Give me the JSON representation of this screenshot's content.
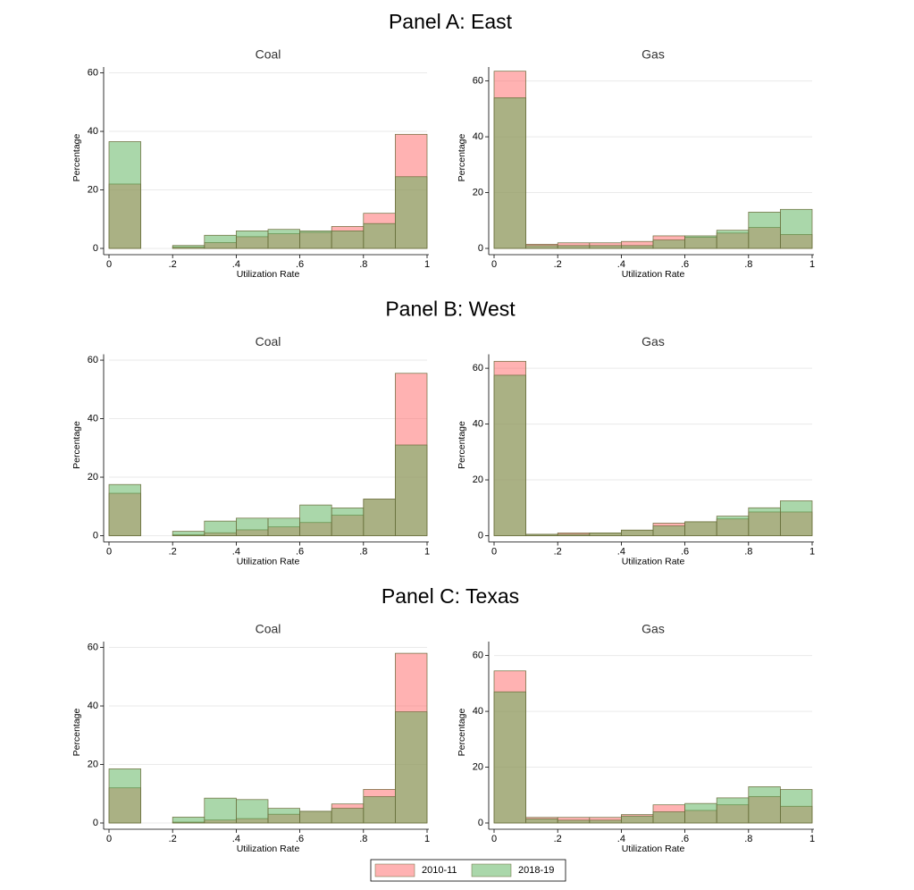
{
  "panel_titles": [
    "Panel A: East",
    "Panel B: West",
    "Panel C: Texas"
  ],
  "legend": [
    {
      "name": "2010-11",
      "color": "#ff6666"
    },
    {
      "name": "2018-19",
      "color": "#55b055"
    }
  ],
  "chart_data": [
    {
      "type": "histogram",
      "title": "Coal",
      "xlabel": "Utilization Rate",
      "ylabel": "Percentage",
      "bins": [
        0,
        0.1,
        0.2,
        0.3,
        0.4,
        0.5,
        0.6,
        0.7,
        0.8,
        0.9,
        1
      ],
      "series": [
        {
          "values": [
            22,
            0,
            0.5,
            2,
            4,
            5,
            5.5,
            7.5,
            12,
            39
          ]
        },
        {
          "values": [
            36.5,
            0,
            1,
            4.5,
            6,
            6.5,
            6,
            6,
            8.5,
            24.5
          ]
        }
      ],
      "xlim": [
        0,
        1
      ],
      "xticks": [
        0,
        {
          "value": 0.2,
          "label": ".2"
        },
        {
          "value": 0.4,
          "label": ".4"
        },
        {
          "value": 0.6,
          "label": ".6"
        },
        {
          "value": 0.8,
          "label": ".8"
        },
        1
      ],
      "ylim": [
        0,
        62
      ],
      "yticks": [
        0,
        20,
        40,
        60
      ],
      "grid": true
    },
    {
      "type": "histogram",
      "title": "Gas",
      "xlabel": "Utilization Rate",
      "ylabel": "Percentage",
      "bins": [
        0,
        0.1,
        0.2,
        0.3,
        0.4,
        0.5,
        0.6,
        0.7,
        0.8,
        0.9,
        1
      ],
      "series": [
        {
          "values": [
            63.5,
            1.5,
            2,
            2,
            2.5,
            4.5,
            4,
            5.5,
            7.5,
            5
          ]
        },
        {
          "values": [
            54,
            1,
            1,
            1,
            1,
            3,
            4.5,
            6.5,
            13,
            14
          ]
        }
      ],
      "xlim": [
        0,
        1
      ],
      "xticks": [
        0,
        {
          "value": 0.2,
          "label": ".2"
        },
        {
          "value": 0.4,
          "label": ".4"
        },
        {
          "value": 0.6,
          "label": ".6"
        },
        {
          "value": 0.8,
          "label": ".8"
        },
        1
      ],
      "ylim": [
        0,
        65
      ],
      "yticks": [
        0,
        20,
        40,
        60
      ],
      "grid": true
    },
    {
      "type": "histogram",
      "title": "Coal",
      "xlabel": "Utilization Rate",
      "ylabel": "Percentage",
      "bins": [
        0,
        0.1,
        0.2,
        0.3,
        0.4,
        0.5,
        0.6,
        0.7,
        0.8,
        0.9,
        1
      ],
      "series": [
        {
          "values": [
            14.5,
            0,
            0.3,
            1,
            2,
            3,
            4.5,
            7,
            12.5,
            55.5
          ]
        },
        {
          "values": [
            17.5,
            0,
            1.5,
            5,
            6,
            6,
            10.5,
            9.5,
            12.5,
            31
          ]
        }
      ],
      "xlim": [
        0,
        1
      ],
      "xticks": [
        0,
        {
          "value": 0.2,
          "label": ".2"
        },
        {
          "value": 0.4,
          "label": ".4"
        },
        {
          "value": 0.6,
          "label": ".6"
        },
        {
          "value": 0.8,
          "label": ".8"
        },
        1
      ],
      "ylim": [
        0,
        62
      ],
      "yticks": [
        0,
        20,
        40,
        60
      ],
      "grid": true
    },
    {
      "type": "histogram",
      "title": "Gas",
      "xlabel": "Utilization Rate",
      "ylabel": "Percentage",
      "bins": [
        0,
        0.1,
        0.2,
        0.3,
        0.4,
        0.5,
        0.6,
        0.7,
        0.8,
        0.9,
        1
      ],
      "series": [
        {
          "values": [
            62.5,
            0.5,
            1,
            1,
            2,
            4.5,
            5,
            6,
            8.5,
            8.5
          ]
        },
        {
          "values": [
            57.5,
            0.5,
            0.5,
            1,
            2,
            3.5,
            5,
            7,
            10,
            12.5
          ]
        }
      ],
      "xlim": [
        0,
        1
      ],
      "xticks": [
        0,
        {
          "value": 0.2,
          "label": ".2"
        },
        {
          "value": 0.4,
          "label": ".4"
        },
        {
          "value": 0.6,
          "label": ".6"
        },
        {
          "value": 0.8,
          "label": ".8"
        },
        1
      ],
      "ylim": [
        0,
        65
      ],
      "yticks": [
        0,
        20,
        40,
        60
      ],
      "grid": true
    },
    {
      "type": "histogram",
      "title": "Coal",
      "xlabel": "Utilization Rate",
      "ylabel": "Percentage",
      "bins": [
        0,
        0.1,
        0.2,
        0.3,
        0.4,
        0.5,
        0.6,
        0.7,
        0.8,
        0.9,
        1
      ],
      "series": [
        {
          "values": [
            12,
            0,
            0.3,
            1,
            1.5,
            3,
            4,
            6.5,
            11.5,
            58
          ]
        },
        {
          "values": [
            18.5,
            0,
            2,
            8.5,
            8,
            5,
            4,
            5,
            9,
            38
          ]
        }
      ],
      "xlim": [
        0,
        1
      ],
      "xticks": [
        0,
        {
          "value": 0.2,
          "label": ".2"
        },
        {
          "value": 0.4,
          "label": ".4"
        },
        {
          "value": 0.6,
          "label": ".6"
        },
        {
          "value": 0.8,
          "label": ".8"
        },
        1
      ],
      "ylim": [
        0,
        62
      ],
      "yticks": [
        0,
        20,
        40,
        60
      ],
      "grid": true
    },
    {
      "type": "histogram",
      "title": "Gas",
      "xlabel": "Utilization Rate",
      "ylabel": "Percentage",
      "bins": [
        0,
        0.1,
        0.2,
        0.3,
        0.4,
        0.5,
        0.6,
        0.7,
        0.8,
        0.9,
        1
      ],
      "series": [
        {
          "values": [
            54.5,
            2,
            2,
            2,
            3,
            6.5,
            4.5,
            6.5,
            9.5,
            6
          ]
        },
        {
          "values": [
            47,
            1.5,
            1,
            1,
            2.5,
            4,
            7,
            9,
            13,
            12
          ]
        }
      ],
      "xlim": [
        0,
        1
      ],
      "xticks": [
        0,
        {
          "value": 0.2,
          "label": ".2"
        },
        {
          "value": 0.4,
          "label": ".4"
        },
        {
          "value": 0.6,
          "label": ".6"
        },
        {
          "value": 0.8,
          "label": ".8"
        },
        1
      ],
      "ylim": [
        0,
        65
      ],
      "yticks": [
        0,
        20,
        40,
        60
      ],
      "grid": true
    }
  ]
}
